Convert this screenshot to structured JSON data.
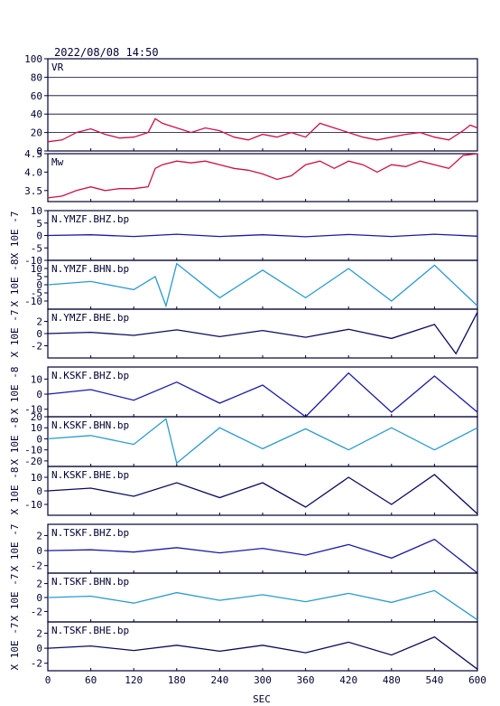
{
  "header": {
    "timestamp": "2022/08/08  14:50"
  },
  "colors": {
    "vr": "#cc1144",
    "mw": "#cc1144",
    "bhz": "#1a1aa8",
    "bhn": "#2a9ad0",
    "bhe": "#0a0a60",
    "frame": "#000033",
    "grid": "#000033"
  },
  "x_axis": {
    "label": "SEC",
    "ticks": [
      "0",
      "60",
      "120",
      "180",
      "240",
      "300",
      "360",
      "420",
      "480",
      "540",
      "600"
    ]
  },
  "chart_data": [
    {
      "type": "line",
      "name": "VR",
      "panel_label": "VR",
      "ylim": [
        0,
        100
      ],
      "yticks": [
        "100",
        "80",
        "60",
        "40",
        "20",
        "0"
      ],
      "grid": true,
      "x": [
        0,
        20,
        40,
        60,
        80,
        100,
        120,
        140,
        150,
        160,
        180,
        200,
        220,
        240,
        260,
        280,
        300,
        320,
        340,
        360,
        380,
        400,
        420,
        440,
        460,
        480,
        500,
        520,
        540,
        560,
        580,
        590,
        600
      ],
      "y": [
        10,
        12,
        20,
        24,
        18,
        14,
        15,
        20,
        35,
        30,
        25,
        20,
        25,
        22,
        15,
        12,
        18,
        15,
        20,
        15,
        30,
        25,
        20,
        15,
        12,
        15,
        18,
        20,
        15,
        12,
        22,
        28,
        25
      ]
    },
    {
      "type": "line",
      "name": "Mw",
      "panel_label": "Mw",
      "ylim": [
        3.2,
        4.5
      ],
      "yticks": [
        "4.5",
        "4.0",
        "3.5"
      ],
      "grid": false,
      "x": [
        0,
        20,
        40,
        60,
        80,
        100,
        120,
        140,
        150,
        160,
        180,
        200,
        220,
        240,
        260,
        280,
        300,
        320,
        340,
        360,
        380,
        400,
        420,
        440,
        460,
        480,
        500,
        520,
        540,
        560,
        580,
        600
      ],
      "y": [
        3.3,
        3.35,
        3.5,
        3.6,
        3.5,
        3.55,
        3.55,
        3.6,
        4.1,
        4.2,
        4.3,
        4.25,
        4.3,
        4.2,
        4.1,
        4.05,
        3.95,
        3.8,
        3.9,
        4.2,
        4.3,
        4.1,
        4.3,
        4.2,
        4.0,
        4.2,
        4.15,
        4.3,
        4.2,
        4.1,
        4.45,
        4.5
      ]
    },
    {
      "type": "line",
      "name": "N.YMZF.BHZ.bp",
      "panel_label": "N.YMZF.BHZ.bp",
      "ylim": [
        -10,
        10
      ],
      "yticks": [
        "10",
        "5",
        "0",
        "-5",
        "-10"
      ],
      "axis_label": "X 10E -7",
      "x": [
        0,
        60,
        120,
        180,
        240,
        300,
        360,
        420,
        480,
        540,
        600
      ],
      "y": [
        0,
        0.3,
        -0.4,
        0.5,
        -0.4,
        0.3,
        -0.5,
        0.4,
        -0.4,
        0.5,
        -0.3
      ]
    },
    {
      "type": "line",
      "name": "N.YMZF.BHN.bp",
      "panel_label": "N.YMZF.BHN.bp",
      "ylim": [
        -15,
        15
      ],
      "yticks": [
        "10",
        "5",
        "0",
        "-5",
        "-10"
      ],
      "axis_label": "X 10E -8",
      "x": [
        0,
        60,
        120,
        150,
        165,
        180,
        240,
        300,
        360,
        420,
        480,
        540,
        600
      ],
      "y": [
        0,
        2,
        -3,
        5,
        -13,
        13,
        -8,
        9,
        -8,
        10,
        -10,
        12,
        -13
      ]
    },
    {
      "type": "line",
      "name": "N.YMZF.BHE.bp",
      "panel_label": "N.YMZF.BHE.bp",
      "ylim": [
        -4,
        4
      ],
      "yticks": [
        "2",
        "0",
        "-2"
      ],
      "axis_label": "X 10E -7",
      "x": [
        0,
        60,
        120,
        180,
        240,
        300,
        360,
        420,
        480,
        540,
        570,
        600
      ],
      "y": [
        0,
        0.2,
        -0.3,
        0.6,
        -0.5,
        0.5,
        -0.6,
        0.7,
        -0.8,
        1.5,
        -3.3,
        3.5
      ]
    },
    {
      "type": "line",
      "name": "N.KSKF.BHZ.bp",
      "panel_label": "N.KSKF.BHZ.bp",
      "ylim": [
        -15,
        18
      ],
      "yticks": [
        "10",
        "0",
        "-10"
      ],
      "axis_label": "X 10E -8",
      "x": [
        0,
        60,
        120,
        180,
        240,
        300,
        360,
        420,
        480,
        540,
        600
      ],
      "y": [
        0,
        3,
        -4,
        8,
        -6,
        6,
        -15,
        14,
        -12,
        12,
        -12
      ]
    },
    {
      "type": "line",
      "name": "N.KSKF.BHN.bp",
      "panel_label": "N.KSKF.BHN.bp",
      "ylim": [
        -25,
        20
      ],
      "yticks": [
        "20",
        "10",
        "0",
        "-10",
        "-20"
      ],
      "axis_label": "X 10E -8",
      "x": [
        0,
        60,
        120,
        165,
        180,
        240,
        300,
        360,
        420,
        480,
        540,
        600
      ],
      "y": [
        0,
        3,
        -5,
        18,
        -22,
        10,
        -9,
        9,
        -10,
        10,
        -10,
        10
      ]
    },
    {
      "type": "line",
      "name": "N.KSKF.BHE.bp",
      "panel_label": "N.KSKF.BHE.bp",
      "ylim": [
        -18,
        18
      ],
      "yticks": [
        "10",
        "0",
        "-10"
      ],
      "axis_label": "X 10E -8",
      "x": [
        0,
        60,
        120,
        180,
        240,
        300,
        360,
        420,
        480,
        540,
        600
      ],
      "y": [
        0,
        2,
        -4,
        6,
        -5,
        6,
        -12,
        10,
        -10,
        12,
        -17
      ]
    },
    {
      "type": "line",
      "name": "N.TSKF.BHZ.bp",
      "panel_label": "N.TSKF.BHZ.bp",
      "ylim": [
        -3,
        3.5
      ],
      "yticks": [
        "2",
        "0",
        "-2"
      ],
      "axis_label": "X 10E -7",
      "x": [
        0,
        60,
        120,
        180,
        240,
        300,
        360,
        420,
        480,
        540,
        600
      ],
      "y": [
        0,
        0.1,
        -0.2,
        0.4,
        -0.3,
        0.3,
        -0.6,
        0.8,
        -1.0,
        1.5,
        -3.0
      ]
    },
    {
      "type": "line",
      "name": "N.TSKF.BHN.bp",
      "panel_label": "N.TSKF.BHN.bp",
      "ylim": [
        -3.5,
        3.5
      ],
      "yticks": [
        "2",
        "0",
        "-2"
      ],
      "axis_label": "X 10E -7",
      "x": [
        0,
        60,
        120,
        180,
        240,
        300,
        360,
        420,
        480,
        540,
        600
      ],
      "y": [
        0,
        0.2,
        -0.8,
        0.7,
        -0.4,
        0.4,
        -0.6,
        0.6,
        -0.7,
        1.0,
        -3.2
      ]
    },
    {
      "type": "line",
      "name": "N.TSKF.BHE.bp",
      "panel_label": "N.TSKF.BHE.bp",
      "ylim": [
        -3,
        3.5
      ],
      "yticks": [
        "2",
        "0",
        "-2"
      ],
      "axis_label": "X 10E -7",
      "x": [
        0,
        60,
        120,
        180,
        240,
        300,
        360,
        420,
        480,
        540,
        600
      ],
      "y": [
        0,
        0.3,
        -0.3,
        0.4,
        -0.4,
        0.4,
        -0.6,
        0.8,
        -0.9,
        1.5,
        -2.8
      ]
    }
  ]
}
